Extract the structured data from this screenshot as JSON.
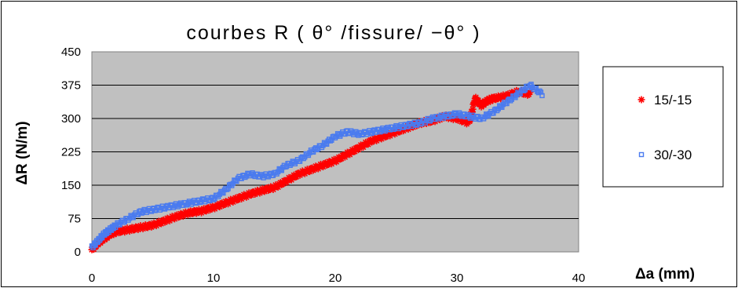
{
  "chart_data": {
    "type": "scatter",
    "title": "courbes R ( θ° /fissure/ −θ° )",
    "xlabel": "Δa (mm)",
    "ylabel": "ΔR (N/m)",
    "xlim": [
      0,
      40
    ],
    "ylim": [
      0,
      450
    ],
    "xticks": [
      "0",
      "10",
      "20",
      "30",
      "40"
    ],
    "yticks": [
      "0",
      "75",
      "150",
      "225",
      "300",
      "375",
      "450"
    ],
    "grid": "horizontal",
    "legend_position": "right",
    "plot_background": "#c0c0c0",
    "series": [
      {
        "name": "15/-15",
        "marker": "asterisk",
        "color": "#ff0000",
        "x": [
          0,
          0.5,
          1,
          1.5,
          2,
          3,
          4,
          5,
          6,
          7,
          8,
          9,
          10,
          11,
          12,
          13,
          14,
          15,
          16,
          17,
          18,
          19,
          20,
          21,
          22,
          23,
          24,
          25,
          26,
          27,
          28,
          29,
          30,
          31,
          31.5,
          32,
          32.5,
          33,
          34,
          35,
          36
        ],
        "y": [
          5,
          20,
          30,
          40,
          45,
          50,
          55,
          60,
          70,
          80,
          88,
          92,
          100,
          110,
          120,
          130,
          138,
          145,
          160,
          175,
          185,
          195,
          205,
          220,
          235,
          250,
          260,
          270,
          280,
          290,
          295,
          305,
          300,
          290,
          345,
          330,
          340,
          345,
          350,
          360,
          355
        ]
      },
      {
        "name": "30/-30",
        "marker": "square",
        "color": "#4a7bef",
        "x": [
          0,
          0.5,
          1,
          1.5,
          2,
          3,
          4,
          5,
          6,
          7,
          8,
          9,
          10,
          11,
          12,
          13,
          14,
          15,
          16,
          17,
          18,
          19,
          20,
          21,
          22,
          23,
          24,
          25,
          26,
          27,
          28,
          29,
          30,
          31,
          32,
          33,
          34,
          35,
          36,
          37
        ],
        "y": [
          10,
          25,
          40,
          50,
          60,
          75,
          90,
          95,
          100,
          105,
          110,
          115,
          120,
          140,
          165,
          175,
          170,
          175,
          195,
          205,
          225,
          240,
          260,
          270,
          265,
          270,
          275,
          280,
          285,
          290,
          300,
          305,
          310,
          305,
          300,
          315,
          335,
          355,
          375,
          355
        ]
      }
    ]
  }
}
